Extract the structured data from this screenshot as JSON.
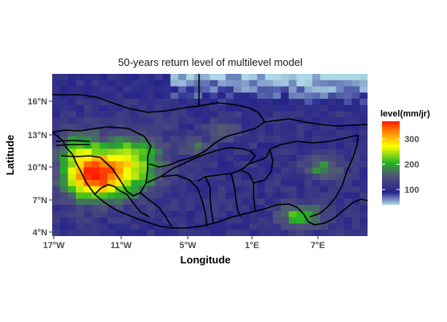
{
  "map": {
    "title": "50-years return level of multilevel model",
    "xlabel": "Longitude",
    "ylabel": "Latitude",
    "x_ticks": [
      "17°W",
      "11°W",
      "5°W",
      "1°E",
      "7°E"
    ],
    "y_ticks": [
      "16°N",
      "13°N",
      "10°N",
      "7°N",
      "4°N"
    ],
    "lon_range": [
      -17.5,
      11.5
    ],
    "lat_range": [
      3.5,
      18.5
    ],
    "legend": {
      "title": "level(mm/jr)",
      "ticks": [
        "100",
        "200",
        "300"
      ],
      "tick_values": [
        100,
        200,
        300
      ],
      "range": [
        40,
        370
      ],
      "colors": [
        "#add8e6",
        "#27248c",
        "#52527a",
        "#23b323",
        "#ffff00",
        "#ff8000",
        "#ff1a00"
      ]
    },
    "border_color": "#000000"
  }
}
